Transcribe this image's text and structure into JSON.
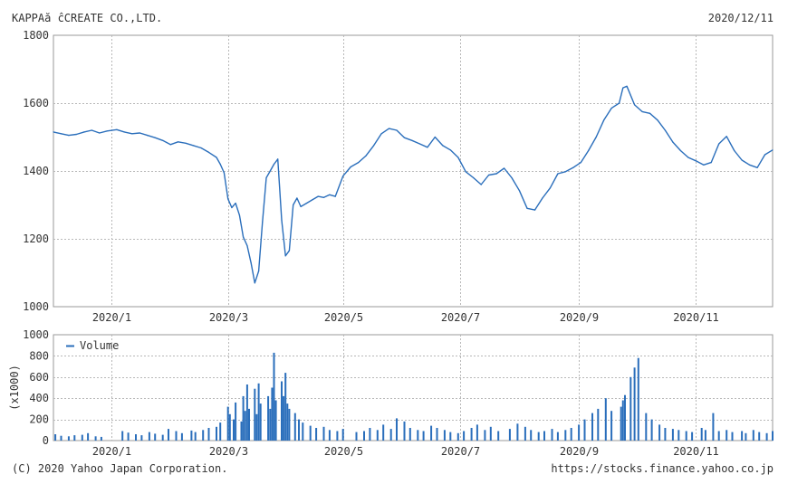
{
  "header": {
    "company": "KAPPAă ĉCREATE CO.,LTD.",
    "date": "2020/12/11"
  },
  "footer": {
    "copyright": "(C) 2020 Yahoo Japan Corporation.",
    "url": "https://stocks.finance.yahoo.co.jp"
  },
  "colors": {
    "line": "#2a6ebb",
    "bar": "#2a6ebb",
    "grid": "#b8b8b8",
    "frame": "#9a9a9a"
  },
  "chart_data": [
    {
      "type": "line",
      "title": "",
      "xlabel": "",
      "ylabel": "",
      "ylim": [
        1000,
        1800
      ],
      "yticks": [
        1000,
        1200,
        1400,
        1600,
        1800
      ],
      "grid": true,
      "x_range": [
        "2019-12-02",
        "2020-12-11"
      ],
      "xticks": [
        {
          "date": "2020-01-01",
          "label": "2020/1"
        },
        {
          "date": "2020-03-02",
          "label": "2020/3"
        },
        {
          "date": "2020-05-01",
          "label": "2020/5"
        },
        {
          "date": "2020-07-01",
          "label": "2020/7"
        },
        {
          "date": "2020-09-01",
          "label": "2020/9"
        },
        {
          "date": "2020-11-01",
          "label": "2020/11"
        }
      ],
      "series": [
        {
          "x": [
            "2019-12-02",
            "2019-12-06",
            "2019-12-10",
            "2019-12-14",
            "2019-12-18",
            "2019-12-22",
            "2019-12-26",
            "2019-12-30",
            "2020-01-04",
            "2020-01-08",
            "2020-01-12",
            "2020-01-16",
            "2020-01-20",
            "2020-01-24",
            "2020-01-28",
            "2020-02-01",
            "2020-02-05",
            "2020-02-09",
            "2020-02-13",
            "2020-02-17",
            "2020-02-21",
            "2020-02-25",
            "2020-02-27",
            "2020-02-29",
            "2020-03-02",
            "2020-03-04",
            "2020-03-06",
            "2020-03-08",
            "2020-03-10",
            "2020-03-12",
            "2020-03-14",
            "2020-03-16",
            "2020-03-18",
            "2020-03-20",
            "2020-03-22",
            "2020-03-24",
            "2020-03-26",
            "2020-03-28",
            "2020-03-30",
            "2020-04-01",
            "2020-04-03",
            "2020-04-05",
            "2020-04-07",
            "2020-04-09",
            "2020-04-12",
            "2020-04-15",
            "2020-04-18",
            "2020-04-21",
            "2020-04-24",
            "2020-04-27",
            "2020-05-01",
            "2020-05-05",
            "2020-05-09",
            "2020-05-13",
            "2020-05-17",
            "2020-05-21",
            "2020-05-25",
            "2020-05-29",
            "2020-06-02",
            "2020-06-06",
            "2020-06-10",
            "2020-06-14",
            "2020-06-18",
            "2020-06-22",
            "2020-06-26",
            "2020-06-30",
            "2020-07-04",
            "2020-07-08",
            "2020-07-12",
            "2020-07-16",
            "2020-07-20",
            "2020-07-24",
            "2020-07-28",
            "2020-08-01",
            "2020-08-05",
            "2020-08-09",
            "2020-08-13",
            "2020-08-17",
            "2020-08-21",
            "2020-08-25",
            "2020-08-29",
            "2020-09-02",
            "2020-09-06",
            "2020-09-10",
            "2020-09-14",
            "2020-09-18",
            "2020-09-22",
            "2020-09-24",
            "2020-09-26",
            "2020-09-30",
            "2020-10-04",
            "2020-10-08",
            "2020-10-12",
            "2020-10-16",
            "2020-10-20",
            "2020-10-24",
            "2020-10-28",
            "2020-11-01",
            "2020-11-05",
            "2020-11-09",
            "2020-11-13",
            "2020-11-17",
            "2020-11-21",
            "2020-11-25",
            "2020-11-29",
            "2020-12-03",
            "2020-12-07",
            "2020-12-11"
          ],
          "y": [
            1515,
            1510,
            1505,
            1508,
            1515,
            1520,
            1512,
            1518,
            1522,
            1515,
            1510,
            1512,
            1505,
            1498,
            1490,
            1478,
            1486,
            1482,
            1475,
            1468,
            1455,
            1440,
            1420,
            1395,
            1318,
            1292,
            1305,
            1270,
            1205,
            1180,
            1130,
            1070,
            1105,
            1250,
            1380,
            1400,
            1420,
            1435,
            1255,
            1150,
            1165,
            1300,
            1320,
            1295,
            1305,
            1315,
            1325,
            1322,
            1330,
            1325,
            1385,
            1412,
            1425,
            1445,
            1475,
            1510,
            1525,
            1520,
            1498,
            1490,
            1480,
            1470,
            1500,
            1475,
            1462,
            1440,
            1398,
            1380,
            1360,
            1388,
            1392,
            1408,
            1380,
            1342,
            1290,
            1285,
            1320,
            1350,
            1392,
            1398,
            1410,
            1425,
            1460,
            1500,
            1550,
            1585,
            1600,
            1645,
            1650,
            1595,
            1575,
            1570,
            1550,
            1520,
            1485,
            1460,
            1440,
            1430,
            1418,
            1425,
            1480,
            1502,
            1460,
            1432,
            1418,
            1410,
            1448,
            1462
          ]
        }
      ]
    },
    {
      "type": "bar",
      "title": "",
      "xlabel": "",
      "ylabel": "(x1000)",
      "ylim": [
        0,
        1000
      ],
      "yticks": [
        0,
        200,
        400,
        600,
        800,
        1000
      ],
      "grid": true,
      "legend": {
        "position": "top-left",
        "entries": [
          "Volume"
        ]
      },
      "x_range": [
        "2019-12-02",
        "2020-12-11"
      ],
      "xticks": [
        {
          "date": "2020-01-01",
          "label": "2020/1"
        },
        {
          "date": "2020-03-02",
          "label": "2020/3"
        },
        {
          "date": "2020-05-01",
          "label": "2020/5"
        },
        {
          "date": "2020-07-01",
          "label": "2020/7"
        },
        {
          "date": "2020-09-01",
          "label": "2020/9"
        },
        {
          "date": "2020-11-01",
          "label": "2020/11"
        }
      ],
      "series": [
        {
          "name": "Volume",
          "x": [
            "2019-12-03",
            "2019-12-06",
            "2019-12-10",
            "2019-12-13",
            "2019-12-17",
            "2019-12-20",
            "2019-12-24",
            "2019-12-27",
            "2020-01-07",
            "2020-01-10",
            "2020-01-14",
            "2020-01-17",
            "2020-01-21",
            "2020-01-24",
            "2020-01-28",
            "2020-01-31",
            "2020-02-04",
            "2020-02-07",
            "2020-02-12",
            "2020-02-14",
            "2020-02-18",
            "2020-02-21",
            "2020-02-25",
            "2020-02-27",
            "2020-03-02",
            "2020-03-03",
            "2020-03-05",
            "2020-03-06",
            "2020-03-09",
            "2020-03-10",
            "2020-03-11",
            "2020-03-12",
            "2020-03-13",
            "2020-03-16",
            "2020-03-17",
            "2020-03-18",
            "2020-03-19",
            "2020-03-23",
            "2020-03-24",
            "2020-03-25",
            "2020-03-26",
            "2020-03-27",
            "2020-03-30",
            "2020-03-31",
            "2020-04-01",
            "2020-04-02",
            "2020-04-03",
            "2020-04-06",
            "2020-04-08",
            "2020-04-10",
            "2020-04-14",
            "2020-04-17",
            "2020-04-21",
            "2020-04-24",
            "2020-04-28",
            "2020-05-01",
            "2020-05-08",
            "2020-05-12",
            "2020-05-15",
            "2020-05-19",
            "2020-05-22",
            "2020-05-26",
            "2020-05-29",
            "2020-06-02",
            "2020-06-05",
            "2020-06-09",
            "2020-06-12",
            "2020-06-16",
            "2020-06-19",
            "2020-06-23",
            "2020-06-26",
            "2020-06-30",
            "2020-07-03",
            "2020-07-07",
            "2020-07-10",
            "2020-07-14",
            "2020-07-17",
            "2020-07-21",
            "2020-07-27",
            "2020-07-31",
            "2020-08-04",
            "2020-08-07",
            "2020-08-11",
            "2020-08-14",
            "2020-08-18",
            "2020-08-21",
            "2020-08-25",
            "2020-08-28",
            "2020-09-01",
            "2020-09-04",
            "2020-09-08",
            "2020-09-11",
            "2020-09-15",
            "2020-09-18",
            "2020-09-23",
            "2020-09-24",
            "2020-09-25",
            "2020-09-28",
            "2020-09-30",
            "2020-10-02",
            "2020-10-06",
            "2020-10-09",
            "2020-10-13",
            "2020-10-16",
            "2020-10-20",
            "2020-10-23",
            "2020-10-27",
            "2020-10-30",
            "2020-11-04",
            "2020-11-06",
            "2020-11-10",
            "2020-11-13",
            "2020-11-17",
            "2020-11-20",
            "2020-11-25",
            "2020-11-27",
            "2020-12-01",
            "2020-12-04",
            "2020-12-08",
            "2020-12-11"
          ],
          "values": [
            60,
            45,
            40,
            50,
            55,
            70,
            40,
            35,
            90,
            75,
            60,
            50,
            80,
            65,
            55,
            110,
            90,
            70,
            95,
            80,
            100,
            120,
            130,
            170,
            320,
            250,
            200,
            360,
            180,
            420,
            280,
            530,
            300,
            490,
            250,
            540,
            350,
            420,
            300,
            500,
            830,
            380,
            560,
            420,
            640,
            350,
            300,
            260,
            200,
            170,
            140,
            120,
            130,
            100,
            90,
            110,
            80,
            90,
            120,
            100,
            150,
            110,
            210,
            180,
            120,
            100,
            90,
            140,
            120,
            100,
            80,
            70,
            90,
            120,
            150,
            100,
            130,
            90,
            110,
            160,
            130,
            100,
            80,
            90,
            110,
            80,
            100,
            120,
            150,
            200,
            260,
            300,
            400,
            280,
            320,
            380,
            430,
            600,
            690,
            780,
            260,
            200,
            150,
            120,
            110,
            100,
            90,
            80,
            120,
            100,
            260,
            90,
            100,
            80,
            90,
            70,
            100,
            80,
            70,
            90
          ]
        }
      ]
    }
  ]
}
